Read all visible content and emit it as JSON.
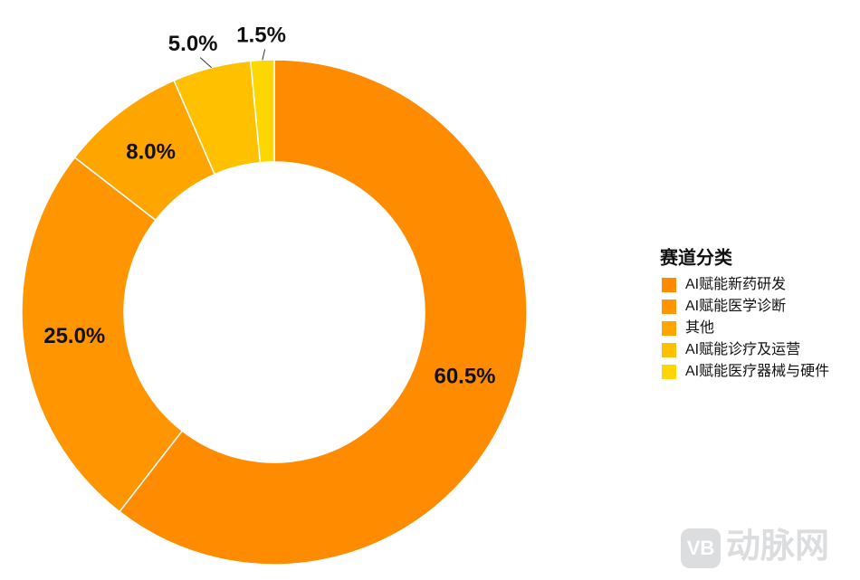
{
  "chart_data": {
    "type": "donut",
    "categories": [
      "AI赋能新药研发",
      "AI赋能医学诊断",
      "其他",
      "AI赋能诊疗及运营",
      "AI赋能医疗器械与硬件"
    ],
    "values": [
      60.5,
      25.0,
      8.0,
      5.0,
      1.5
    ],
    "value_labels": [
      "60.5%",
      "25.0%",
      "8.0%",
      "5.0%",
      "1.5%"
    ],
    "colors": [
      "#ff8c00",
      "#ff9500",
      "#ffa500",
      "#ffc000",
      "#ffd700"
    ],
    "legend_title": "赛道分类",
    "legend": "right"
  },
  "watermark": "动脉网"
}
